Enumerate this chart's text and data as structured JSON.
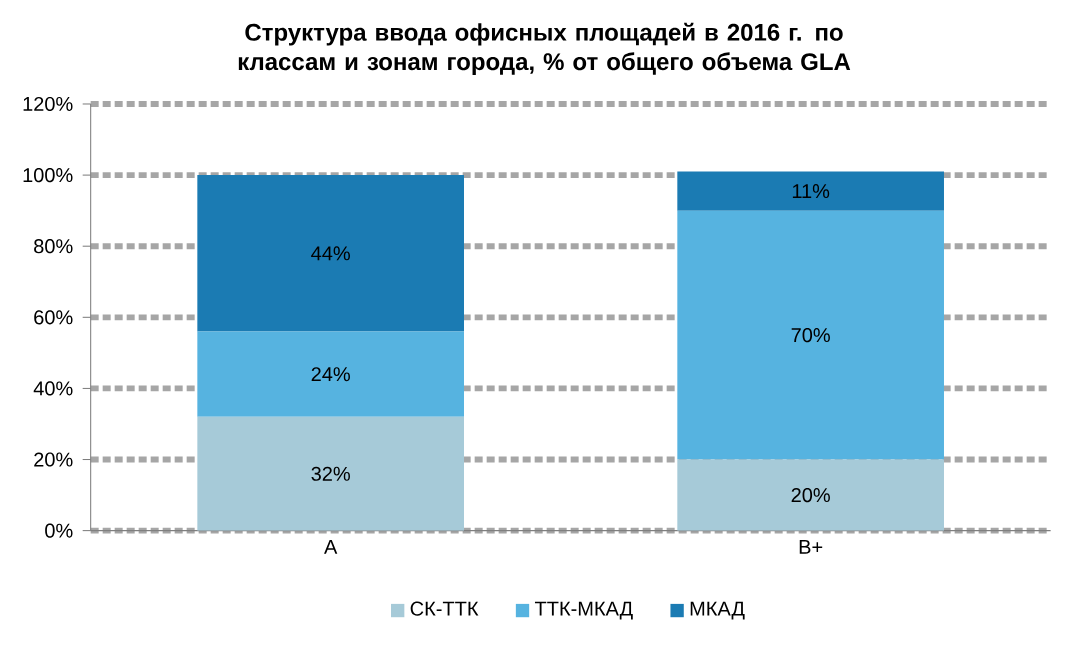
{
  "chart_data": {
    "type": "bar",
    "stacked": true,
    "title": "Структура ввода офисных площадей в 2016 г. по классам и зонам города, % от общего объема GLA",
    "categories": [
      "A",
      "B+"
    ],
    "series": [
      {
        "name": "СК-ТТК",
        "color": "#a6cad8",
        "values": [
          32,
          20
        ],
        "value_labels": [
          "32%",
          "20%"
        ]
      },
      {
        "name": "ТТК-МКАД",
        "color": "#56b3e0",
        "values": [
          24,
          70
        ],
        "value_labels": [
          "24%",
          "70%"
        ]
      },
      {
        "name": "МКАД",
        "color": "#1b7bb3",
        "values": [
          44,
          11
        ],
        "value_labels": [
          "44%",
          "11%"
        ]
      }
    ],
    "ylim": [
      0,
      120
    ],
    "yticks": [
      {
        "value": 0,
        "label": "0%"
      },
      {
        "value": 20,
        "label": "20%"
      },
      {
        "value": 40,
        "label": "40%"
      },
      {
        "value": 60,
        "label": "60%"
      },
      {
        "value": 80,
        "label": "80%"
      },
      {
        "value": 100,
        "label": "100%"
      },
      {
        "value": 120,
        "label": "120%"
      }
    ],
    "grid": "y",
    "legend": "bottom"
  }
}
